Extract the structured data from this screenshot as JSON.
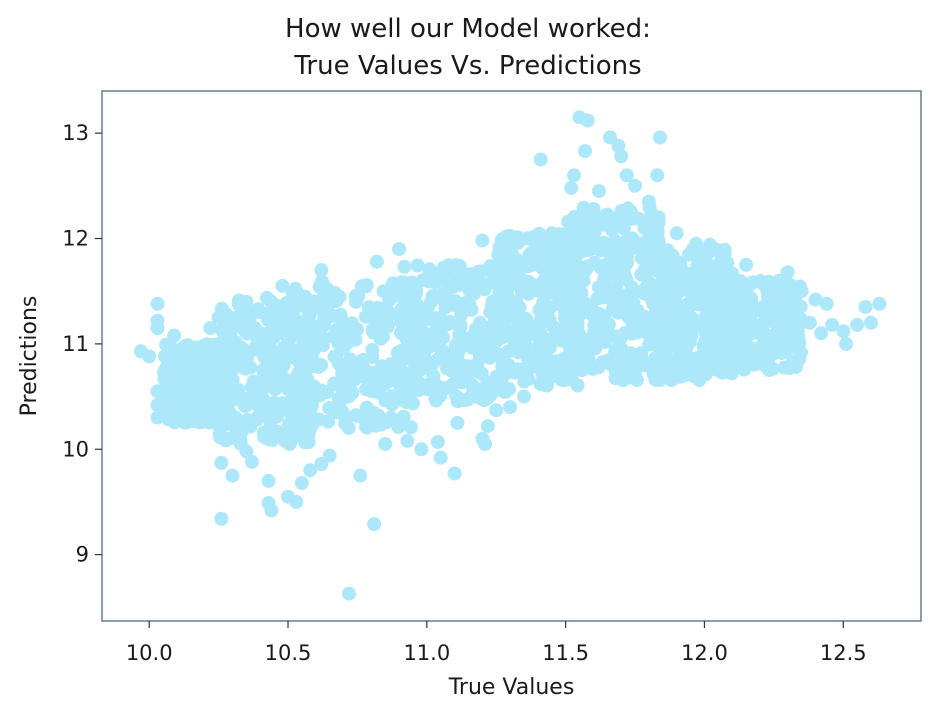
{
  "chart_data": {
    "type": "scatter",
    "title": [
      "How well our Model worked:",
      "True Values Vs. Predictions"
    ],
    "xlabel": "True Values",
    "ylabel": "Predictions",
    "xlim": [
      9.83,
      12.78
    ],
    "ylim": [
      8.37,
      13.4
    ],
    "xticks": [
      10.0,
      10.5,
      11.0,
      11.5,
      12.0,
      12.5
    ],
    "xtick_labels": [
      "10.0",
      "10.5",
      "11.0",
      "11.5",
      "12.0",
      "12.5"
    ],
    "yticks": [
      9,
      10,
      11,
      12,
      13
    ],
    "ytick_labels": [
      "9",
      "10",
      "11",
      "12",
      "13"
    ],
    "grid": false,
    "legend": "none",
    "color": "#ade8fa",
    "spine_color": "#4a6a86",
    "dense_regions": [
      {
        "x_range": [
          10.05,
          10.3
        ],
        "y_range": [
          10.25,
          11.0
        ]
      },
      {
        "x_range": [
          10.25,
          10.6
        ],
        "y_range": [
          10.05,
          11.45
        ]
      },
      {
        "x_range": [
          10.5,
          10.95
        ],
        "y_range": [
          10.2,
          11.6
        ]
      },
      {
        "x_range": [
          10.9,
          11.3
        ],
        "y_range": [
          10.45,
          11.75
        ]
      },
      {
        "x_range": [
          11.25,
          11.55
        ],
        "y_range": [
          10.6,
          12.05
        ]
      },
      {
        "x_range": [
          11.5,
          11.85
        ],
        "y_range": [
          10.65,
          12.3
        ]
      },
      {
        "x_range": [
          11.8,
          12.1
        ],
        "y_range": [
          10.65,
          11.9
        ]
      },
      {
        "x_range": [
          12.05,
          12.35
        ],
        "y_range": [
          10.75,
          11.6
        ]
      }
    ],
    "points": [
      {
        "x": 9.97,
        "y": 10.93
      },
      {
        "x": 10.0,
        "y": 10.88
      },
      {
        "x": 10.03,
        "y": 11.38
      },
      {
        "x": 10.03,
        "y": 11.22
      },
      {
        "x": 10.03,
        "y": 11.15
      },
      {
        "x": 10.03,
        "y": 10.55
      },
      {
        "x": 10.03,
        "y": 10.42
      },
      {
        "x": 10.03,
        "y": 10.3
      },
      {
        "x": 10.09,
        "y": 11.08
      },
      {
        "x": 10.07,
        "y": 10.82
      },
      {
        "x": 10.16,
        "y": 10.62
      },
      {
        "x": 10.2,
        "y": 10.38
      },
      {
        "x": 10.26,
        "y": 9.34
      },
      {
        "x": 10.26,
        "y": 9.87
      },
      {
        "x": 10.3,
        "y": 9.75
      },
      {
        "x": 10.35,
        "y": 9.98
      },
      {
        "x": 10.37,
        "y": 9.88
      },
      {
        "x": 10.43,
        "y": 9.49
      },
      {
        "x": 10.44,
        "y": 9.42
      },
      {
        "x": 10.43,
        "y": 9.7
      },
      {
        "x": 10.5,
        "y": 9.55
      },
      {
        "x": 10.53,
        "y": 9.5
      },
      {
        "x": 10.55,
        "y": 9.68
      },
      {
        "x": 10.58,
        "y": 9.8
      },
      {
        "x": 10.62,
        "y": 9.86
      },
      {
        "x": 10.65,
        "y": 9.94
      },
      {
        "x": 10.72,
        "y": 8.63
      },
      {
        "x": 10.76,
        "y": 9.75
      },
      {
        "x": 10.81,
        "y": 9.29
      },
      {
        "x": 10.85,
        "y": 10.05
      },
      {
        "x": 10.93,
        "y": 10.08
      },
      {
        "x": 10.98,
        "y": 10.0
      },
      {
        "x": 11.04,
        "y": 10.07
      },
      {
        "x": 11.05,
        "y": 9.92
      },
      {
        "x": 11.1,
        "y": 9.77
      },
      {
        "x": 11.11,
        "y": 10.25
      },
      {
        "x": 11.2,
        "y": 10.1
      },
      {
        "x": 11.21,
        "y": 10.05
      },
      {
        "x": 11.22,
        "y": 10.22
      },
      {
        "x": 11.25,
        "y": 10.37
      },
      {
        "x": 11.3,
        "y": 10.4
      },
      {
        "x": 11.35,
        "y": 10.5
      },
      {
        "x": 11.41,
        "y": 12.75
      },
      {
        "x": 11.52,
        "y": 12.48
      },
      {
        "x": 11.53,
        "y": 12.6
      },
      {
        "x": 11.55,
        "y": 13.15
      },
      {
        "x": 11.58,
        "y": 13.12
      },
      {
        "x": 11.57,
        "y": 12.83
      },
      {
        "x": 11.62,
        "y": 12.45
      },
      {
        "x": 11.66,
        "y": 12.96
      },
      {
        "x": 11.69,
        "y": 12.88
      },
      {
        "x": 11.7,
        "y": 12.78
      },
      {
        "x": 11.72,
        "y": 12.6
      },
      {
        "x": 11.75,
        "y": 12.5
      },
      {
        "x": 11.84,
        "y": 12.96
      },
      {
        "x": 11.83,
        "y": 12.6
      },
      {
        "x": 11.8,
        "y": 12.35
      },
      {
        "x": 11.9,
        "y": 12.05
      },
      {
        "x": 11.97,
        "y": 11.95
      },
      {
        "x": 12.02,
        "y": 11.94
      },
      {
        "x": 12.15,
        "y": 11.75
      },
      {
        "x": 12.3,
        "y": 11.68
      },
      {
        "x": 12.35,
        "y": 11.5
      },
      {
        "x": 12.4,
        "y": 11.42
      },
      {
        "x": 12.44,
        "y": 11.38
      },
      {
        "x": 12.38,
        "y": 11.2
      },
      {
        "x": 12.42,
        "y": 11.1
      },
      {
        "x": 12.46,
        "y": 11.18
      },
      {
        "x": 12.5,
        "y": 11.12
      },
      {
        "x": 12.51,
        "y": 11.0
      },
      {
        "x": 12.55,
        "y": 11.18
      },
      {
        "x": 12.58,
        "y": 11.35
      },
      {
        "x": 12.6,
        "y": 11.2
      },
      {
        "x": 12.63,
        "y": 11.38
      },
      {
        "x": 12.33,
        "y": 10.82
      },
      {
        "x": 12.28,
        "y": 10.95
      },
      {
        "x": 11.2,
        "y": 11.98
      },
      {
        "x": 11.06,
        "y": 11.72
      },
      {
        "x": 10.9,
        "y": 11.9
      },
      {
        "x": 10.82,
        "y": 11.78
      },
      {
        "x": 10.62,
        "y": 11.7
      },
      {
        "x": 10.48,
        "y": 11.55
      },
      {
        "x": 10.35,
        "y": 11.4
      },
      {
        "x": 10.25,
        "y": 11.25
      },
      {
        "x": 10.22,
        "y": 11.15
      }
    ]
  }
}
